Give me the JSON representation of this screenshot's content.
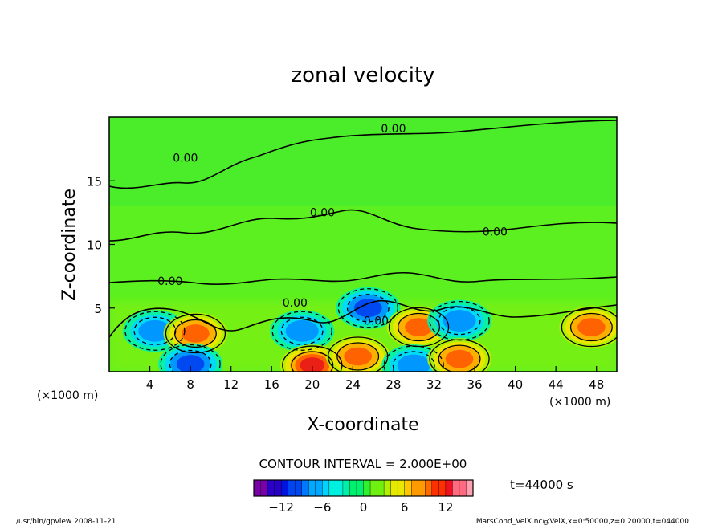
{
  "chart_data": {
    "type": "heatmap",
    "title": "zonal velocity",
    "xlabel": "X-coordinate",
    "ylabel": "Z-coordinate",
    "x_unit": "(×1000 m)",
    "y_unit": "(×1000 m)",
    "xlim": [
      0,
      50
    ],
    "ylim": [
      0,
      20
    ],
    "x_ticks": [
      4,
      8,
      12,
      16,
      20,
      24,
      28,
      32,
      36,
      40,
      44,
      48
    ],
    "y_ticks": [
      5,
      10,
      15
    ],
    "contour_label": "0.00",
    "contour_interval_text": "CONTOUR INTERVAL = 2.000E+00",
    "colorbar": {
      "range": [
        -16,
        16
      ],
      "ticks": [
        -12,
        -6,
        0,
        6,
        12
      ],
      "colors": [
        "#7a00a8",
        "#2a00c8",
        "#0014e0",
        "#0046f0",
        "#0078ff",
        "#00a8ff",
        "#00d4ff",
        "#00f0e0",
        "#00f0a8",
        "#00f070",
        "#30f030",
        "#70f010",
        "#b0f000",
        "#e8e800",
        "#ffc800",
        "#ff9a00",
        "#ff6a00",
        "#ff3000",
        "#f01020",
        "#ff6a80",
        "#ffa0b0"
      ]
    },
    "features": [
      {
        "type": "jet",
        "sign": "negative",
        "x": 4.5,
        "z": 3.2,
        "min": -8
      },
      {
        "type": "jet",
        "sign": "positive",
        "x": 8.5,
        "z": 3.0,
        "min": 10
      },
      {
        "type": "jet",
        "sign": "negative",
        "x": 8.0,
        "z": 0.6,
        "min": -10
      },
      {
        "type": "jet",
        "sign": "negative",
        "x": 19.0,
        "z": 3.2,
        "min": -8
      },
      {
        "type": "jet",
        "sign": "negative",
        "x": 25.5,
        "z": 5.0,
        "min": -10
      },
      {
        "type": "jet",
        "sign": "positive",
        "x": 20.0,
        "z": 0.5,
        "min": 12
      },
      {
        "type": "jet",
        "sign": "positive",
        "x": 24.5,
        "z": 1.2,
        "min": 10
      },
      {
        "type": "jet",
        "sign": "positive",
        "x": 30.5,
        "z": 3.5,
        "min": 10
      },
      {
        "type": "jet",
        "sign": "negative",
        "x": 30.0,
        "z": 0.5,
        "min": -8
      },
      {
        "type": "jet",
        "sign": "negative",
        "x": 34.5,
        "z": 4.0,
        "min": -8
      },
      {
        "type": "jet",
        "sign": "positive",
        "x": 34.5,
        "z": 1.0,
        "min": 10
      },
      {
        "type": "jet",
        "sign": "positive",
        "x": 47.5,
        "z": 3.5,
        "min": 10
      }
    ]
  },
  "footer": {
    "left": "/usr/bin/gpview   2008-11-21",
    "right": "MarsCond_VelX.nc@VelX,x=0:50000,z=0:20000,t=044000",
    "time": "t=44000 s"
  }
}
